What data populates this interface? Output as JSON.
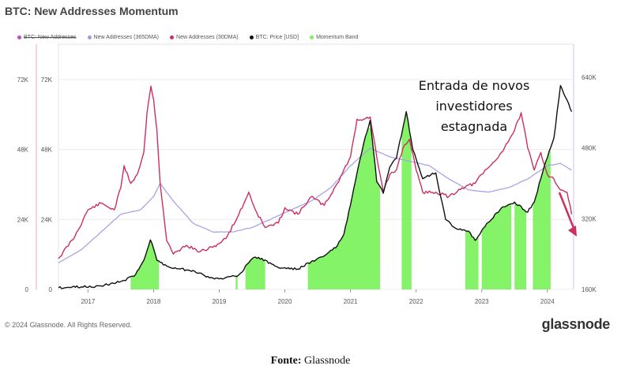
{
  "header": {
    "title": "BTC: New Addresses Momentum"
  },
  "legend": [
    {
      "label": "BTC: New Addresses",
      "color": "#c44bbf",
      "strike": true
    },
    {
      "label": "New Addresses (365DMA)",
      "color": "#9e9be0",
      "strike": false
    },
    {
      "label": "New Addresses (30DMA)",
      "color": "#cc2f5e",
      "strike": false
    },
    {
      "label": "BTC: Price [USD]",
      "color": "#111111",
      "strike": false
    },
    {
      "label": "Momentum Band",
      "color": "#7ef25f",
      "strike": false
    }
  ],
  "annotation": "Entrada de novos investidores estagnada",
  "footer": {
    "copyright": "© 2024 Glassnode. All Rights Reserved.",
    "brand": "glassnode",
    "source_label": "Fonte:",
    "source_value": "Glassnode"
  },
  "colors": {
    "addresses_30dma": "#cc2f5e",
    "addresses_365dma": "#a8a4e6",
    "price": "#111111",
    "momentum_band": "#7ef25f",
    "arrow": "#cc2f5e"
  },
  "chart_data": {
    "type": "line",
    "title": "BTC: New Addresses Momentum",
    "x_ticks": [
      "2017",
      "2018",
      "2019",
      "2020",
      "2021",
      "2022",
      "2023",
      "2024"
    ],
    "y_left_outer_ticks": [
      "0",
      "24K",
      "48K",
      "72K"
    ],
    "y_left_inner_ticks": [
      "0",
      "24K",
      "48K",
      "72K"
    ],
    "y_right_ticks": [
      "160K",
      "320K",
      "480K",
      "640K"
    ],
    "x_range": [
      2016.55,
      2024.4
    ],
    "y_left_range": [
      0,
      72000
    ],
    "y_right_range": [
      160000,
      640000
    ],
    "series": [
      {
        "name": "New Addresses (30DMA)",
        "axis": "right",
        "x": [
          2016.55,
          2016.8,
          2017.0,
          2017.2,
          2017.4,
          2017.5,
          2017.55,
          2017.65,
          2017.75,
          2017.85,
          2017.9,
          2017.96,
          2018.0,
          2018.05,
          2018.1,
          2018.2,
          2018.3,
          2018.5,
          2018.7,
          2018.9,
          2019.1,
          2019.3,
          2019.45,
          2019.55,
          2019.7,
          2019.9,
          2020.0,
          2020.2,
          2020.4,
          2020.6,
          2020.8,
          2021.0,
          2021.1,
          2021.2,
          2021.3,
          2021.4,
          2021.5,
          2021.6,
          2021.7,
          2021.8,
          2021.9,
          2022.0,
          2022.1,
          2022.3,
          2022.5,
          2022.7,
          2022.9,
          2023.0,
          2023.2,
          2023.3,
          2023.5,
          2023.6,
          2023.7,
          2023.8,
          2023.9,
          2024.0,
          2024.1,
          2024.2,
          2024.3,
          2024.37
        ],
        "values": [
          230000,
          280000,
          340000,
          355000,
          340000,
          390000,
          440000,
          400000,
          420000,
          470000,
          560000,
          620000,
          590000,
          520000,
          400000,
          270000,
          240000,
          260000,
          245000,
          255000,
          275000,
          330000,
          380000,
          340000,
          300000,
          310000,
          345000,
          330000,
          370000,
          350000,
          400000,
          460000,
          545000,
          545000,
          550000,
          460000,
          380000,
          420000,
          430000,
          480000,
          500000,
          430000,
          380000,
          380000,
          370000,
          390000,
          400000,
          420000,
          450000,
          470000,
          520000,
          560000,
          480000,
          430000,
          470000,
          420000,
          410000,
          385000,
          380000,
          330000
        ]
      },
      {
        "name": "New Addresses (365DMA)",
        "axis": "right",
        "x": [
          2016.55,
          2016.9,
          2017.2,
          2017.5,
          2017.8,
          2018.0,
          2018.1,
          2018.3,
          2018.6,
          2018.9,
          2019.2,
          2019.5,
          2019.8,
          2020.1,
          2020.4,
          2020.7,
          2021.0,
          2021.3,
          2021.6,
          2021.9,
          2022.2,
          2022.5,
          2022.8,
          2023.1,
          2023.4,
          2023.7,
          2024.0,
          2024.2,
          2024.37
        ],
        "values": [
          220000,
          250000,
          290000,
          330000,
          340000,
          370000,
          400000,
          360000,
          310000,
          290000,
          290000,
          300000,
          320000,
          340000,
          360000,
          390000,
          440000,
          480000,
          460000,
          450000,
          440000,
          410000,
          385000,
          380000,
          390000,
          410000,
          440000,
          445000,
          430000
        ]
      },
      {
        "name": "BTC: Price [USD]",
        "axis": "left",
        "x": [
          2016.55,
          2016.9,
          2017.2,
          2017.5,
          2017.7,
          2017.85,
          2017.95,
          2018.0,
          2018.05,
          2018.2,
          2018.4,
          2018.6,
          2018.85,
          2019.0,
          2019.3,
          2019.5,
          2019.6,
          2019.9,
          2020.2,
          2020.4,
          2020.6,
          2020.8,
          2020.9,
          2021.0,
          2021.1,
          2021.2,
          2021.3,
          2021.4,
          2021.5,
          2021.6,
          2021.7,
          2021.85,
          2021.95,
          2022.1,
          2022.3,
          2022.45,
          2022.6,
          2022.8,
          2022.9,
          2023.1,
          2023.3,
          2023.5,
          2023.7,
          2023.8,
          2023.95,
          2024.1,
          2024.2,
          2024.3,
          2024.37
        ],
        "values": [
          600,
          900,
          1200,
          2700,
          4500,
          10000,
          17000,
          14000,
          10000,
          8000,
          7000,
          6500,
          4000,
          3600,
          5000,
          10500,
          11000,
          7500,
          7000,
          9500,
          11500,
          15000,
          19000,
          29000,
          40000,
          50000,
          58000,
          37000,
          33000,
          42000,
          45000,
          61000,
          48000,
          38000,
          40000,
          24000,
          21000,
          20000,
          16800,
          23000,
          28000,
          30000,
          26500,
          30000,
          42000,
          52000,
          70000,
          65000,
          61000
        ]
      }
    ],
    "momentum_band": {
      "name": "Momentum Band",
      "axis": "left",
      "periods": [
        [
          2017.65,
          2018.08
        ],
        [
          2019.25,
          2019.28
        ],
        [
          2019.4,
          2019.7
        ],
        [
          2020.35,
          2021.45
        ],
        [
          2021.78,
          2021.93
        ],
        [
          2022.75,
          2022.95
        ],
        [
          2023.0,
          2023.45
        ],
        [
          2023.5,
          2023.68
        ],
        [
          2023.78,
          2024.05
        ]
      ]
    },
    "annotation": "Entrada de novos investidores estagnada"
  }
}
